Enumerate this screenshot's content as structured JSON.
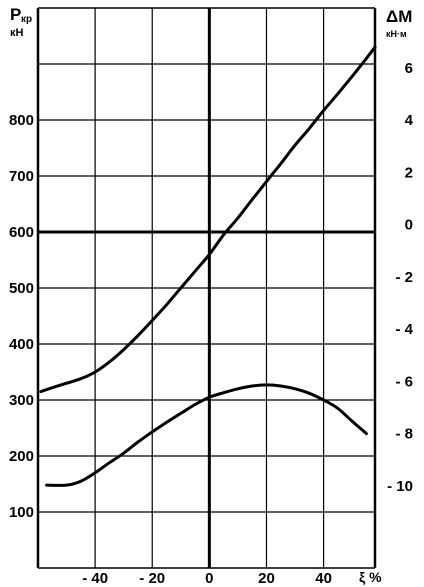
{
  "chart_data": {
    "type": "line",
    "left_axis": {
      "label_main": "P",
      "label_sub": "кр",
      "unit": "кН",
      "ticks": [
        100,
        200,
        300,
        400,
        500,
        600,
        700,
        800
      ],
      "range": [
        0,
        1000
      ]
    },
    "right_axis": {
      "label_main": "ΔM",
      "unit": "кН·м",
      "ticks": [
        6,
        4,
        2,
        0,
        -2,
        -4,
        -6,
        -8,
        -10
      ],
      "tick_labels": [
        "6",
        "4",
        "2",
        "0",
        "- 2",
        "- 4",
        "- 6",
        "- 8",
        "- 10"
      ],
      "range": [
        -13.14,
        8.29
      ]
    },
    "x_axis": {
      "label": "ξ %",
      "ticks": [
        -40,
        -20,
        0,
        20,
        40
      ],
      "tick_labels": [
        "- 40",
        "- 20",
        "0",
        "20",
        "40"
      ],
      "range": [
        -60,
        58
      ]
    },
    "grid": true,
    "series": [
      {
        "axis": "left",
        "x": [
          -59,
          -55,
          -50,
          -45,
          -40,
          -35,
          -30,
          -25,
          -20,
          -15,
          -10,
          -5,
          0,
          5,
          10,
          15,
          20,
          25,
          30,
          35,
          40,
          45,
          50,
          55,
          58
        ],
        "y": [
          315,
          322,
          330,
          338,
          350,
          368,
          390,
          415,
          442,
          470,
          500,
          530,
          560,
          595,
          625,
          658,
          690,
          722,
          755,
          785,
          817,
          847,
          878,
          910,
          930
        ]
      },
      {
        "axis": "left",
        "x": [
          -57,
          -50,
          -45,
          -40,
          -35,
          -30,
          -25,
          -20,
          -15,
          -10,
          -5,
          0,
          5,
          10,
          15,
          20,
          25,
          30,
          35,
          40,
          45,
          50,
          55
        ],
        "y": [
          148,
          148,
          155,
          170,
          188,
          205,
          225,
          243,
          260,
          276,
          292,
          305,
          313,
          320,
          325,
          327,
          325,
          320,
          312,
          300,
          285,
          262,
          240
        ]
      }
    ]
  }
}
